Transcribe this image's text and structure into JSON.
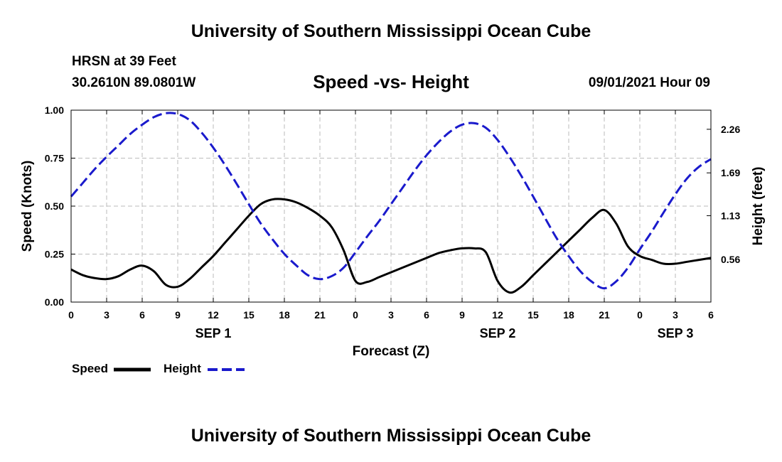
{
  "header": {
    "title": "University of Southern Mississippi Ocean Cube",
    "station": "HRSN at 39 Feet",
    "coordinates": "30.2610N  89.0801W",
    "subtitle": "Speed -vs- Height",
    "run_time": "09/01/2021 Hour 09"
  },
  "footer": {
    "title": "University of Southern Mississippi Ocean Cube"
  },
  "legend": {
    "speed_label": "Speed",
    "height_label": "Height"
  },
  "colors": {
    "speed": "#000000",
    "height": "#1a1acc",
    "grid": "#bbbbbb"
  },
  "chart_data": {
    "type": "line",
    "xlabel": "Forecast (Z)",
    "ylabel_left": "Speed (Knots)",
    "ylabel_right": "Height (feet)",
    "x_range": [
      0,
      54
    ],
    "x_ticks": [
      0,
      3,
      6,
      9,
      12,
      15,
      18,
      21,
      24,
      27,
      30,
      33,
      36,
      39,
      42,
      45,
      48,
      51,
      54
    ],
    "x_tick_labels": [
      "0",
      "3",
      "6",
      "9",
      "12",
      "15",
      "18",
      "21",
      "0",
      "3",
      "6",
      "9",
      "12",
      "15",
      "18",
      "21",
      "0",
      "3",
      "6"
    ],
    "date_labels": [
      {
        "x": 12,
        "label": "SEP 1"
      },
      {
        "x": 36,
        "label": "SEP 2"
      },
      {
        "x": 51,
        "label": "SEP 3"
      }
    ],
    "ylim_left": [
      0,
      1
    ],
    "y_ticks_left": [
      0,
      0.25,
      0.5,
      0.75,
      1.0
    ],
    "y_tick_labels_left": [
      "0.00",
      "0.25",
      "0.50",
      "0.75",
      "1.00"
    ],
    "ylim_right": [
      0,
      2.51
    ],
    "y_ticks_right": [
      0.56,
      1.13,
      1.69,
      2.26
    ],
    "y_tick_labels_right": [
      "0.56",
      "1.13",
      "1.69",
      "2.26"
    ],
    "grid": true,
    "series": [
      {
        "name": "Speed",
        "axis": "left",
        "x": [
          0,
          1,
          2,
          3,
          4,
          5,
          6,
          7,
          8,
          9,
          10,
          11,
          12,
          13,
          14,
          15,
          16,
          17,
          18,
          19,
          20,
          21,
          22,
          23,
          24,
          25,
          26,
          27,
          28,
          29,
          30,
          31,
          32,
          33,
          34,
          35,
          36,
          37,
          38,
          39,
          40,
          41,
          42,
          43,
          44,
          45,
          46,
          47,
          48,
          49,
          50,
          51,
          52,
          53,
          54
        ],
        "values": [
          0.17,
          0.14,
          0.125,
          0.12,
          0.135,
          0.17,
          0.19,
          0.16,
          0.09,
          0.08,
          0.12,
          0.18,
          0.24,
          0.31,
          0.38,
          0.45,
          0.51,
          0.535,
          0.535,
          0.52,
          0.49,
          0.45,
          0.39,
          0.27,
          0.11,
          0.105,
          0.13,
          0.155,
          0.18,
          0.205,
          0.23,
          0.255,
          0.27,
          0.28,
          0.28,
          0.26,
          0.11,
          0.05,
          0.08,
          0.14,
          0.2,
          0.26,
          0.32,
          0.38,
          0.44,
          0.48,
          0.41,
          0.29,
          0.24,
          0.22,
          0.2,
          0.2,
          0.21,
          0.22,
          0.23
        ]
      },
      {
        "name": "Height",
        "axis": "right",
        "x": [
          0,
          1,
          2,
          3,
          4,
          5,
          6,
          7,
          8,
          9,
          10,
          11,
          12,
          13,
          14,
          15,
          16,
          17,
          18,
          19,
          20,
          21,
          22,
          23,
          24,
          25,
          26,
          27,
          28,
          29,
          30,
          31,
          32,
          33,
          34,
          35,
          36,
          37,
          38,
          39,
          40,
          41,
          42,
          43,
          44,
          45,
          46,
          47,
          48,
          49,
          50,
          51,
          52,
          53,
          54
        ],
        "values": [
          1.38,
          1.56,
          1.74,
          1.9,
          2.05,
          2.2,
          2.32,
          2.42,
          2.47,
          2.46,
          2.38,
          2.22,
          2.02,
          1.79,
          1.54,
          1.28,
          1.03,
          0.82,
          0.63,
          0.48,
          0.35,
          0.3,
          0.34,
          0.45,
          0.65,
          0.86,
          1.06,
          1.28,
          1.5,
          1.72,
          1.92,
          2.09,
          2.23,
          2.32,
          2.34,
          2.28,
          2.12,
          1.9,
          1.65,
          1.38,
          1.1,
          0.83,
          0.6,
          0.4,
          0.26,
          0.18,
          0.27,
          0.45,
          0.69,
          0.92,
          1.17,
          1.41,
          1.62,
          1.77,
          1.87
        ]
      }
    ]
  }
}
